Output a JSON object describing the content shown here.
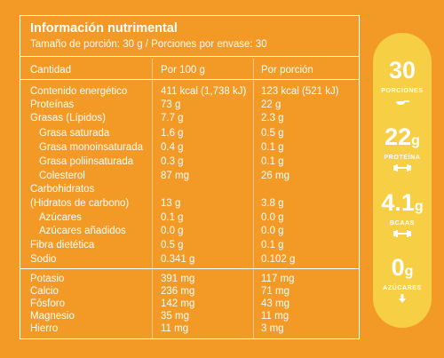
{
  "title": "Información nutrimental",
  "serving": "Tamaño de porción: 30 g / Porciones por envase: 30",
  "headers": {
    "col1": "Cantidad",
    "col2": "Por 100 g",
    "col3": "Por porción"
  },
  "rows": [
    {
      "label": "Contenido energético",
      "per100": "411 kcal (1,738 kJ)",
      "portion": "123 kcal (521 kJ)"
    },
    {
      "label": "Proteínas",
      "per100": "73 g",
      "portion": "22 g"
    },
    {
      "label": "Grasas (Lípidos)",
      "per100": "7.7 g",
      "portion": "2.3 g"
    },
    {
      "label": "Grasa saturada",
      "per100": "1.6 g",
      "portion": "0.5 g"
    },
    {
      "label": "Grasa monoinsaturada",
      "per100": "0.4 g",
      "portion": "0.1 g"
    },
    {
      "label": "Grasa poliinsaturada",
      "per100": "0.3 g",
      "portion": "0.1 g"
    },
    {
      "label": "Colesterol",
      "per100": "87 mg",
      "portion": "26 mg"
    },
    {
      "label": "Carbohidratos",
      "label2": "(Hidratos de carbono)",
      "per100": "13 g",
      "portion": "3.8 g"
    },
    {
      "label": "Azúcares",
      "per100": "0.1 g",
      "portion": "0.0 g"
    },
    {
      "label": "Azúcares añadidos",
      "per100": "0.0 g",
      "portion": "0.0 g"
    },
    {
      "label": "Fibra dietética",
      "per100": "0.5 g",
      "portion": "0.1 g"
    },
    {
      "label": "Sodio",
      "per100": "0.341 g",
      "portion": "0.102 g"
    },
    {
      "label": "Potasio",
      "per100": "391 mg",
      "portion": "117 mg"
    },
    {
      "label": "Calcio",
      "per100": "236 mg",
      "portion": "71 mg"
    },
    {
      "label": "Fósforo",
      "per100": "142 mg",
      "portion": "43 mg"
    },
    {
      "label": "Magnesio",
      "per100": "35 mg",
      "portion": "11 mg"
    },
    {
      "label": "Hierro",
      "per100": "11 mg",
      "portion": "3 mg"
    }
  ],
  "highlights": [
    {
      "value": "30",
      "unit": "",
      "label": "PORCIONES",
      "icon": "scoop-icon"
    },
    {
      "value": "22",
      "unit": "g",
      "label": "PROTEÍNA",
      "icon": "dumbbell-icon"
    },
    {
      "value": "4.1",
      "unit": "g",
      "label": "BCAAS",
      "icon": "dumbbell-icon"
    },
    {
      "value": "0",
      "unit": "g",
      "label": "AZÚCARES",
      "icon": "arrow-down-icon"
    }
  ],
  "colors": {
    "background": "#F39A26",
    "pill": "#F6CF45",
    "text": "#FFFFFF"
  }
}
